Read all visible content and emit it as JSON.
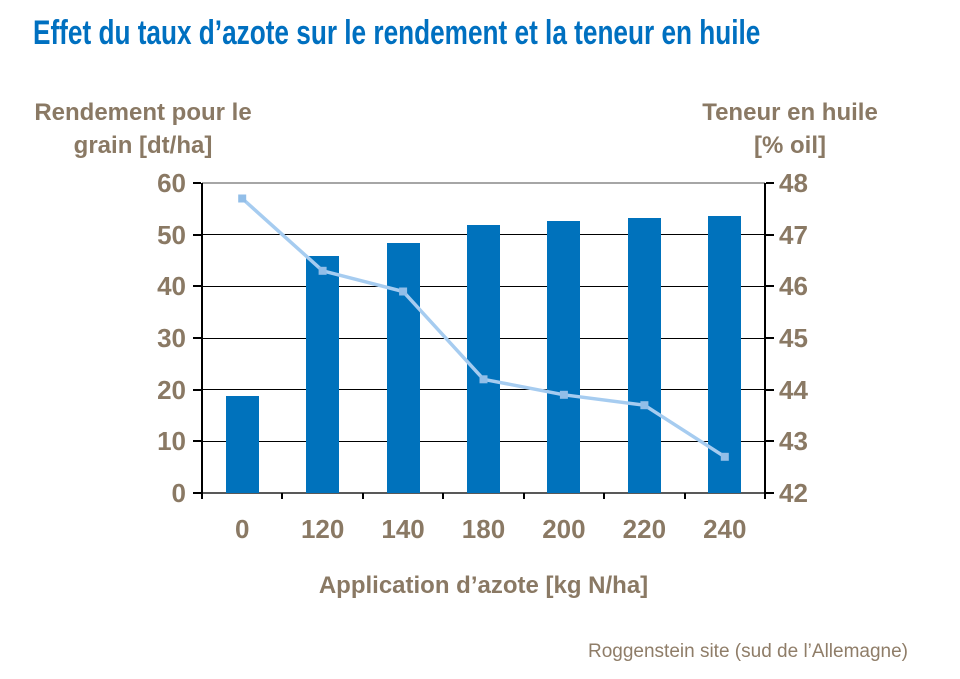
{
  "page": {
    "title": "Effet du taux d’azote sur le rendement et la teneur en huile",
    "footnote": "Roggenstein site (sud de l’Allemagne)"
  },
  "colors": {
    "title_blue": "#0070C0",
    "axis_text_brown": "#8A7964",
    "bar_blue": "#0072BC",
    "line_light_blue": "#A6CCF0",
    "marker_blue": "#92BEE8",
    "gridline_black": "#000000",
    "plot_border_gray": "#A6A6A6"
  },
  "chart_data": {
    "type": "bar",
    "subtype": "combo-bar-line-dual-axis",
    "title": "Effet du taux d’azote sur le rendement et la teneur en huile",
    "categories": [
      "0",
      "120",
      "140",
      "180",
      "200",
      "220",
      "240"
    ],
    "series": [
      {
        "name": "Rendement pour le grain [dt/ha]",
        "type": "bar",
        "axis": "left",
        "values": [
          18.8,
          45.9,
          48.4,
          51.8,
          52.7,
          53.3,
          53.7
        ]
      },
      {
        "name": "Teneur en huile [% oil]",
        "type": "line",
        "axis": "right",
        "values": [
          47.7,
          46.3,
          45.9,
          44.2,
          43.9,
          43.7,
          42.7
        ]
      }
    ],
    "left_axis": {
      "title": "Rendement pour le\ngrain [dt/ha]",
      "min": 0,
      "max": 60,
      "ticks": [
        0,
        10,
        20,
        30,
        40,
        50,
        60
      ]
    },
    "right_axis": {
      "title": "Teneur en huile\n[% oil]",
      "min": 42,
      "max": 48,
      "ticks": [
        42,
        43,
        44,
        45,
        46,
        47,
        48
      ]
    },
    "x_axis": {
      "title": "Application d’azote [kg N/ha]"
    },
    "grid": true,
    "legend": "none"
  }
}
